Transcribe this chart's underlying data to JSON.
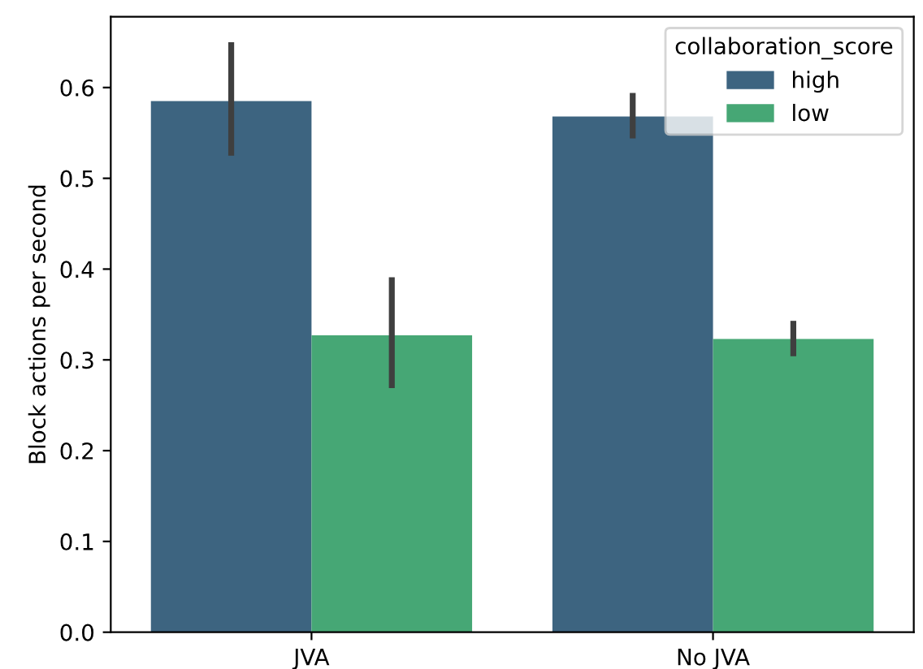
{
  "chart_data": {
    "type": "bar",
    "ylabel": "Block actions per second",
    "legend_title": "collaboration_score",
    "categories": [
      "JVA",
      "No JVA"
    ],
    "series": [
      {
        "name": "high",
        "color": "#3d6480",
        "values": [
          0.585,
          0.568
        ],
        "errors": [
          [
            0.525,
            0.65
          ],
          [
            0.544,
            0.594
          ]
        ]
      },
      {
        "name": "low",
        "color": "#46a775",
        "values": [
          0.327,
          0.323
        ],
        "errors": [
          [
            0.269,
            0.391
          ],
          [
            0.304,
            0.343
          ]
        ]
      }
    ],
    "ylim": [
      0,
      0.678
    ],
    "yticks": [
      {
        "value": 0,
        "label": "0.0"
      },
      0.1,
      0.2,
      0.3,
      0.4,
      0.5,
      0.6
    ],
    "grid": false,
    "legend": "top right"
  }
}
